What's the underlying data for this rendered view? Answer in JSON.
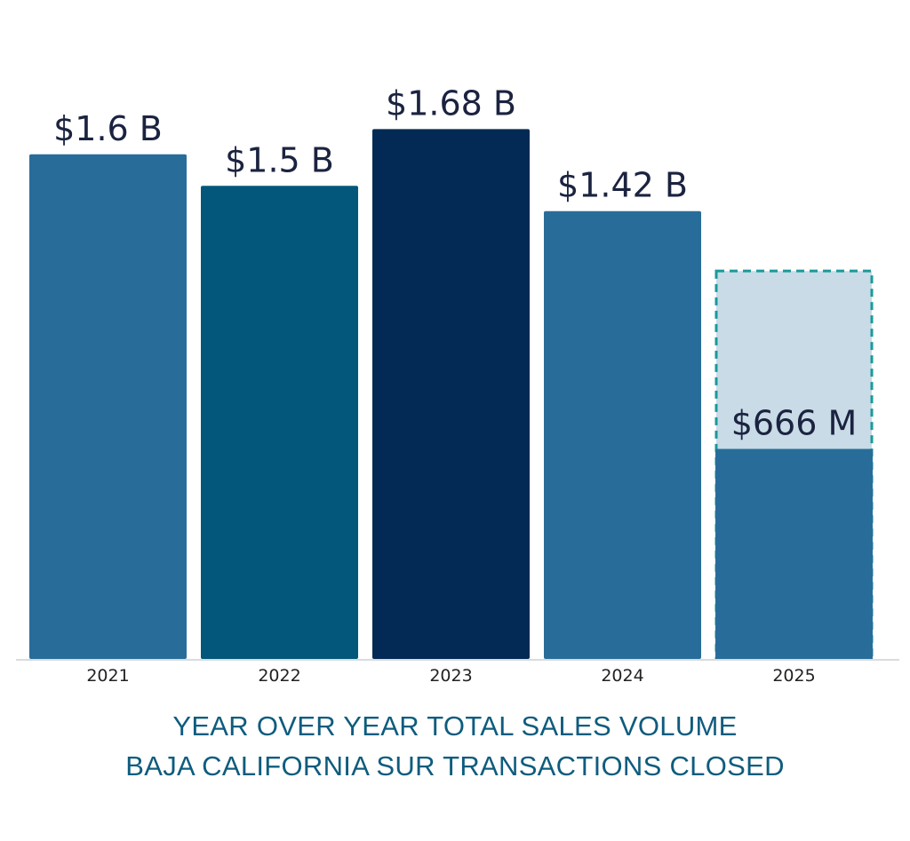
{
  "chart_data": {
    "type": "bar",
    "categories": [
      "2021",
      "2022",
      "2023",
      "2024",
      "2025"
    ],
    "values": [
      1600,
      1500,
      1680,
      1420,
      666
    ],
    "value_labels": [
      "$1.6 B",
      "$1.5 B",
      "$1.68 B",
      "$1.42 B",
      "$666 M"
    ],
    "units": "$ millions",
    "ylim": [
      0,
      1850
    ],
    "projected_2025_value": 1230,
    "title_lines": [
      "YEAR OVER YEAR TOTAL SALES VOLUME",
      "BAJA CALIFORNIA SUR TRANSACTIONS CLOSED"
    ],
    "grid": false,
    "legend": "none",
    "colors": {
      "bars": [
        "#286d9a",
        "#02577a",
        "#022a55",
        "#286d9a",
        "#286d9a"
      ],
      "projection_fill": "#c9dbe6",
      "projection_border": "#1a9a9a",
      "value_text": "#1b2340",
      "axis_line": "#d8dce0",
      "title_text": "#0e5c7e"
    }
  }
}
